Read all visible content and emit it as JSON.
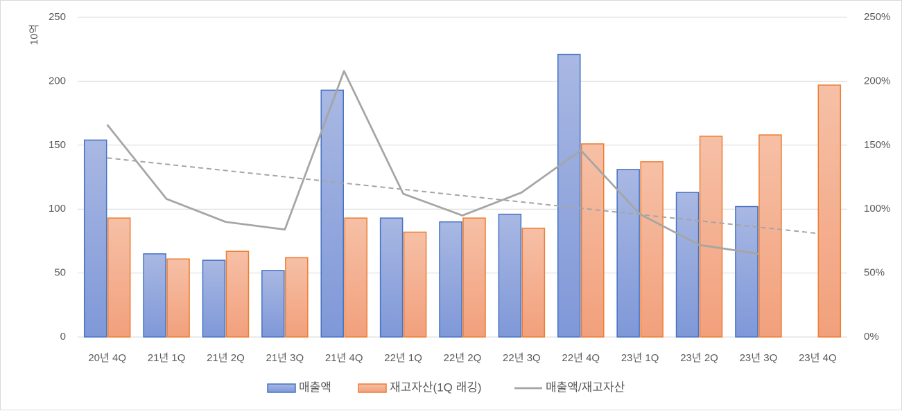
{
  "chart_data": {
    "type": "bar",
    "title": "",
    "ylabel": "10억",
    "ylim": [
      0,
      250
    ],
    "yticks": [
      0,
      50,
      100,
      150,
      200,
      250
    ],
    "y2lim": [
      0,
      2.5
    ],
    "y2ticks": [
      "0%",
      "50%",
      "100%",
      "150%",
      "200%",
      "250%"
    ],
    "grid": true,
    "legend_position": "bottom",
    "categories": [
      "20년 4Q",
      "21년 1Q",
      "21년 2Q",
      "21년 3Q",
      "21년 4Q",
      "22년 1Q",
      "22년 2Q",
      "22년 3Q",
      "22년 4Q",
      "23년 1Q",
      "23년 2Q",
      "23년 3Q",
      "23년 4Q"
    ],
    "series": [
      {
        "name": "매출액",
        "type": "bar",
        "axis": "left",
        "color": "#4472c4",
        "fill_top": "#a9b8e3",
        "fill_bottom": "#7f98d8",
        "values": [
          154,
          65,
          60,
          52,
          193,
          93,
          90,
          96,
          221,
          131,
          113,
          102,
          null
        ]
      },
      {
        "name": "재고자산(1Q 래깅)",
        "type": "bar",
        "axis": "left",
        "color": "#ed7d31",
        "fill_top": "#f6c0a6",
        "fill_bottom": "#f2a07c",
        "values": [
          93,
          61,
          67,
          62,
          93,
          82,
          93,
          85,
          151,
          137,
          157,
          158,
          197
        ]
      },
      {
        "name": "매출액/재고자산",
        "type": "line",
        "axis": "right",
        "color": "#a5a5a5",
        "values": [
          1.66,
          1.08,
          0.9,
          0.84,
          2.08,
          1.12,
          0.95,
          1.13,
          1.46,
          0.96,
          0.72,
          0.65,
          null
        ]
      }
    ],
    "trendline": {
      "of_series": "매출액/재고자산",
      "style": "dashed",
      "color": "#a5a5a5",
      "start": 1.4,
      "end": 0.81
    }
  }
}
